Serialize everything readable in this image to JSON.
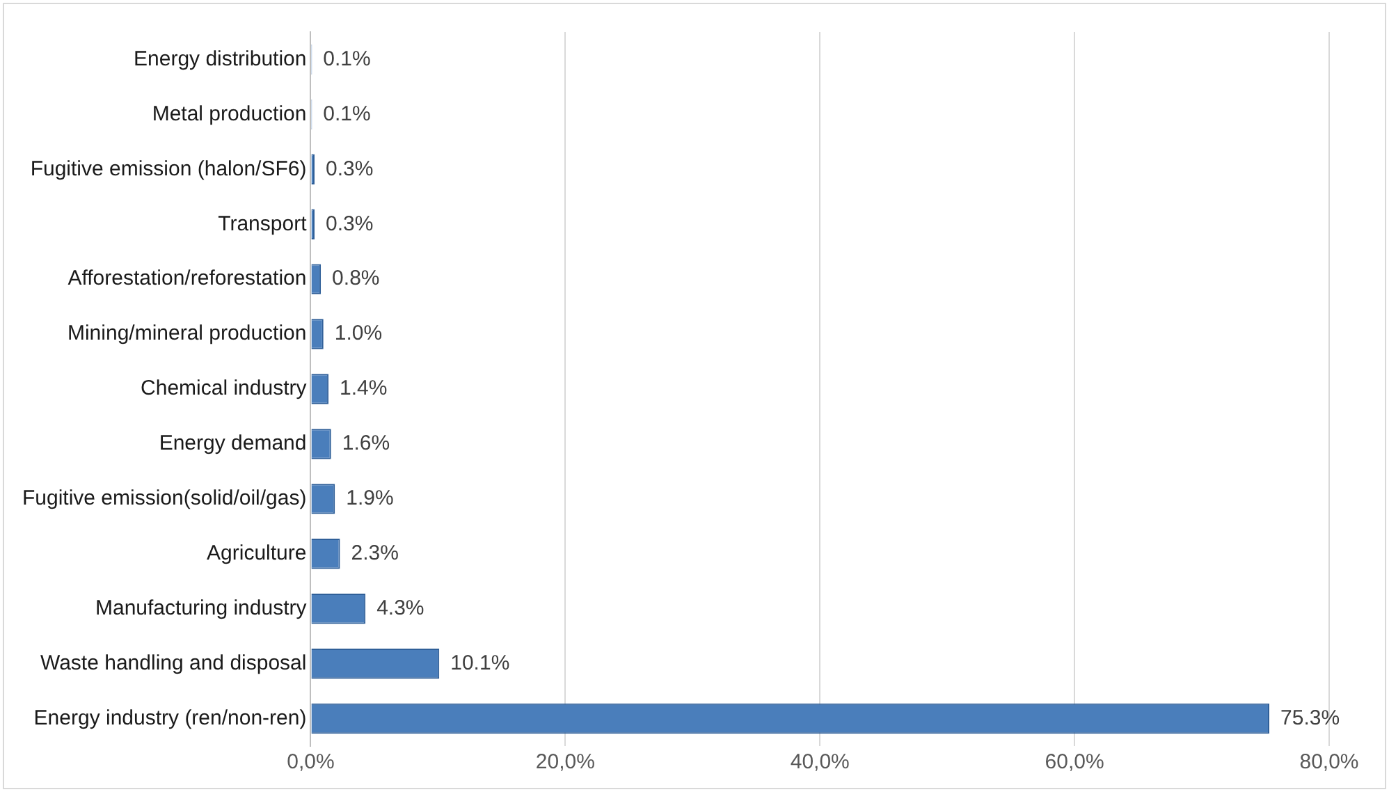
{
  "chart_data": {
    "type": "bar",
    "orientation": "horizontal",
    "categories": [
      "Energy distribution",
      "Metal production",
      "Fugitive emission (halon/SF6)",
      "Transport",
      "Afforestation/reforestation",
      "Mining/mineral production",
      "Chemical industry",
      "Energy demand",
      "Fugitive emission(solid/oil/gas)",
      "Agriculture",
      "Manufacturing industry",
      "Waste handling and disposal",
      "Energy industry (ren/non-ren)"
    ],
    "values": [
      0.1,
      0.1,
      0.3,
      0.3,
      0.8,
      1.0,
      1.4,
      1.6,
      1.9,
      2.3,
      4.3,
      10.1,
      75.3
    ],
    "value_labels": [
      "0.1%",
      "0.1%",
      "0.3%",
      "0.3%",
      "0.8%",
      "1.0%",
      "1.4%",
      "1.6%",
      "1.9%",
      "2.3%",
      "4.3%",
      "10.1%",
      "75.3%"
    ],
    "color": "#4a7ebb",
    "xlim": [
      0,
      80
    ],
    "xticks": [
      {
        "value": 0,
        "label": "0,0%"
      },
      {
        "value": 20,
        "label": "20,0%"
      },
      {
        "value": 40,
        "label": "40,0%"
      },
      {
        "value": 60,
        "label": "60,0%"
      },
      {
        "value": 80,
        "label": "80,0%"
      }
    ],
    "grid": "x"
  }
}
